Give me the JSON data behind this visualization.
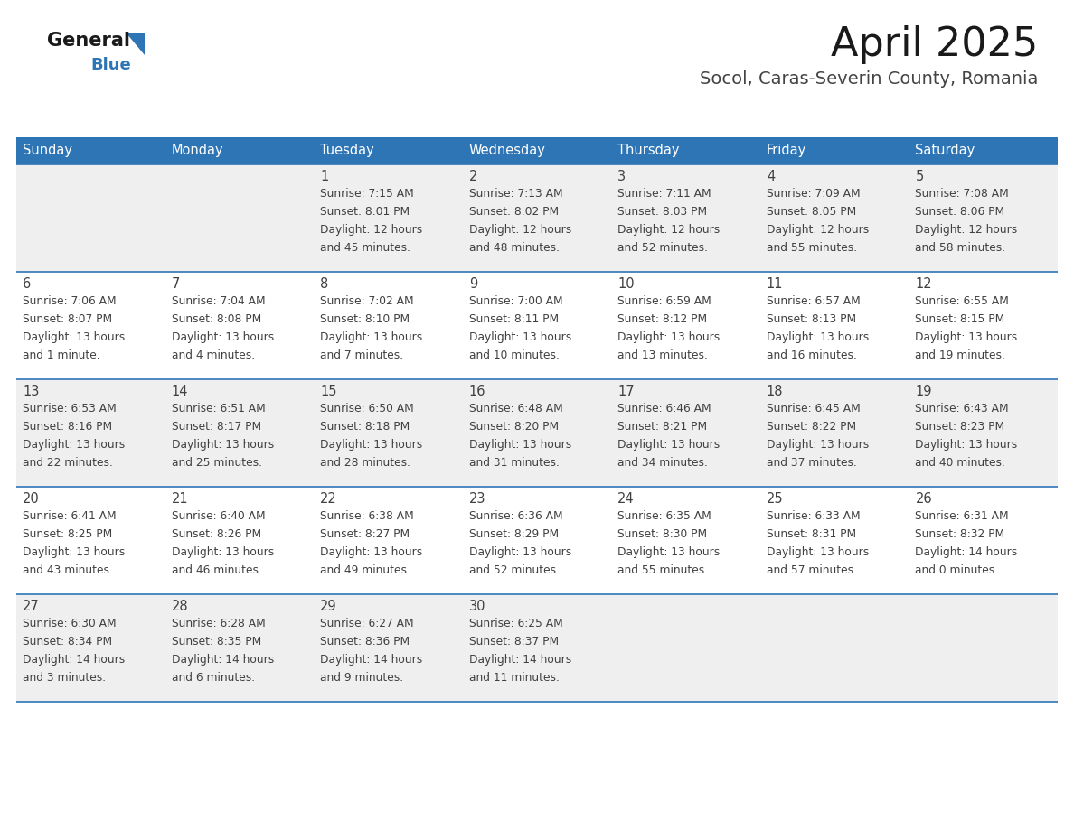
{
  "title": "April 2025",
  "subtitle": "Socol, Caras-Severin County, Romania",
  "days_of_week": [
    "Sunday",
    "Monday",
    "Tuesday",
    "Wednesday",
    "Thursday",
    "Friday",
    "Saturday"
  ],
  "header_bg": "#2E75B6",
  "header_text_color": "#FFFFFF",
  "cell_bg_even": "#EFEFEF",
  "cell_bg_odd": "#FFFFFF",
  "divider_color": "#2E75B6",
  "text_color": "#404040",
  "title_color": "#1a1a1a",
  "subtitle_color": "#444444",
  "logo_general_color": "#1a1a1a",
  "logo_blue_color": "#2E75B6",
  "calendar_data": [
    [
      {
        "day": "",
        "sunrise": "",
        "sunset": "",
        "daylight": ""
      },
      {
        "day": "",
        "sunrise": "",
        "sunset": "",
        "daylight": ""
      },
      {
        "day": "1",
        "sunrise": "Sunrise: 7:15 AM",
        "sunset": "Sunset: 8:01 PM",
        "daylight": "Daylight: 12 hours\nand 45 minutes."
      },
      {
        "day": "2",
        "sunrise": "Sunrise: 7:13 AM",
        "sunset": "Sunset: 8:02 PM",
        "daylight": "Daylight: 12 hours\nand 48 minutes."
      },
      {
        "day": "3",
        "sunrise": "Sunrise: 7:11 AM",
        "sunset": "Sunset: 8:03 PM",
        "daylight": "Daylight: 12 hours\nand 52 minutes."
      },
      {
        "day": "4",
        "sunrise": "Sunrise: 7:09 AM",
        "sunset": "Sunset: 8:05 PM",
        "daylight": "Daylight: 12 hours\nand 55 minutes."
      },
      {
        "day": "5",
        "sunrise": "Sunrise: 7:08 AM",
        "sunset": "Sunset: 8:06 PM",
        "daylight": "Daylight: 12 hours\nand 58 minutes."
      }
    ],
    [
      {
        "day": "6",
        "sunrise": "Sunrise: 7:06 AM",
        "sunset": "Sunset: 8:07 PM",
        "daylight": "Daylight: 13 hours\nand 1 minute."
      },
      {
        "day": "7",
        "sunrise": "Sunrise: 7:04 AM",
        "sunset": "Sunset: 8:08 PM",
        "daylight": "Daylight: 13 hours\nand 4 minutes."
      },
      {
        "day": "8",
        "sunrise": "Sunrise: 7:02 AM",
        "sunset": "Sunset: 8:10 PM",
        "daylight": "Daylight: 13 hours\nand 7 minutes."
      },
      {
        "day": "9",
        "sunrise": "Sunrise: 7:00 AM",
        "sunset": "Sunset: 8:11 PM",
        "daylight": "Daylight: 13 hours\nand 10 minutes."
      },
      {
        "day": "10",
        "sunrise": "Sunrise: 6:59 AM",
        "sunset": "Sunset: 8:12 PM",
        "daylight": "Daylight: 13 hours\nand 13 minutes."
      },
      {
        "day": "11",
        "sunrise": "Sunrise: 6:57 AM",
        "sunset": "Sunset: 8:13 PM",
        "daylight": "Daylight: 13 hours\nand 16 minutes."
      },
      {
        "day": "12",
        "sunrise": "Sunrise: 6:55 AM",
        "sunset": "Sunset: 8:15 PM",
        "daylight": "Daylight: 13 hours\nand 19 minutes."
      }
    ],
    [
      {
        "day": "13",
        "sunrise": "Sunrise: 6:53 AM",
        "sunset": "Sunset: 8:16 PM",
        "daylight": "Daylight: 13 hours\nand 22 minutes."
      },
      {
        "day": "14",
        "sunrise": "Sunrise: 6:51 AM",
        "sunset": "Sunset: 8:17 PM",
        "daylight": "Daylight: 13 hours\nand 25 minutes."
      },
      {
        "day": "15",
        "sunrise": "Sunrise: 6:50 AM",
        "sunset": "Sunset: 8:18 PM",
        "daylight": "Daylight: 13 hours\nand 28 minutes."
      },
      {
        "day": "16",
        "sunrise": "Sunrise: 6:48 AM",
        "sunset": "Sunset: 8:20 PM",
        "daylight": "Daylight: 13 hours\nand 31 minutes."
      },
      {
        "day": "17",
        "sunrise": "Sunrise: 6:46 AM",
        "sunset": "Sunset: 8:21 PM",
        "daylight": "Daylight: 13 hours\nand 34 minutes."
      },
      {
        "day": "18",
        "sunrise": "Sunrise: 6:45 AM",
        "sunset": "Sunset: 8:22 PM",
        "daylight": "Daylight: 13 hours\nand 37 minutes."
      },
      {
        "day": "19",
        "sunrise": "Sunrise: 6:43 AM",
        "sunset": "Sunset: 8:23 PM",
        "daylight": "Daylight: 13 hours\nand 40 minutes."
      }
    ],
    [
      {
        "day": "20",
        "sunrise": "Sunrise: 6:41 AM",
        "sunset": "Sunset: 8:25 PM",
        "daylight": "Daylight: 13 hours\nand 43 minutes."
      },
      {
        "day": "21",
        "sunrise": "Sunrise: 6:40 AM",
        "sunset": "Sunset: 8:26 PM",
        "daylight": "Daylight: 13 hours\nand 46 minutes."
      },
      {
        "day": "22",
        "sunrise": "Sunrise: 6:38 AM",
        "sunset": "Sunset: 8:27 PM",
        "daylight": "Daylight: 13 hours\nand 49 minutes."
      },
      {
        "day": "23",
        "sunrise": "Sunrise: 6:36 AM",
        "sunset": "Sunset: 8:29 PM",
        "daylight": "Daylight: 13 hours\nand 52 minutes."
      },
      {
        "day": "24",
        "sunrise": "Sunrise: 6:35 AM",
        "sunset": "Sunset: 8:30 PM",
        "daylight": "Daylight: 13 hours\nand 55 minutes."
      },
      {
        "day": "25",
        "sunrise": "Sunrise: 6:33 AM",
        "sunset": "Sunset: 8:31 PM",
        "daylight": "Daylight: 13 hours\nand 57 minutes."
      },
      {
        "day": "26",
        "sunrise": "Sunrise: 6:31 AM",
        "sunset": "Sunset: 8:32 PM",
        "daylight": "Daylight: 14 hours\nand 0 minutes."
      }
    ],
    [
      {
        "day": "27",
        "sunrise": "Sunrise: 6:30 AM",
        "sunset": "Sunset: 8:34 PM",
        "daylight": "Daylight: 14 hours\nand 3 minutes."
      },
      {
        "day": "28",
        "sunrise": "Sunrise: 6:28 AM",
        "sunset": "Sunset: 8:35 PM",
        "daylight": "Daylight: 14 hours\nand 6 minutes."
      },
      {
        "day": "29",
        "sunrise": "Sunrise: 6:27 AM",
        "sunset": "Sunset: 8:36 PM",
        "daylight": "Daylight: 14 hours\nand 9 minutes."
      },
      {
        "day": "30",
        "sunrise": "Sunrise: 6:25 AM",
        "sunset": "Sunset: 8:37 PM",
        "daylight": "Daylight: 14 hours\nand 11 minutes."
      },
      {
        "day": "",
        "sunrise": "",
        "sunset": "",
        "daylight": ""
      },
      {
        "day": "",
        "sunrise": "",
        "sunset": "",
        "daylight": ""
      },
      {
        "day": "",
        "sunrise": "",
        "sunset": "",
        "daylight": ""
      }
    ]
  ]
}
